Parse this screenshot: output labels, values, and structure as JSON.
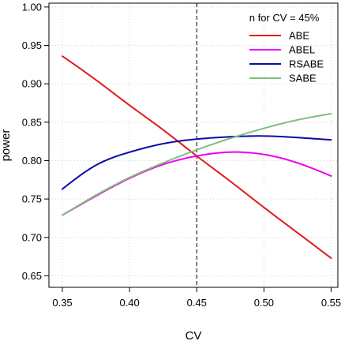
{
  "chart_data": {
    "type": "line",
    "xlabel": "CV",
    "ylabel": "power",
    "xlim": [
      0.34,
      0.555
    ],
    "ylim": [
      0.635,
      1.005
    ],
    "xticks": [
      0.35,
      0.4,
      0.45,
      0.5,
      0.55
    ],
    "xtick_labels": [
      "0.35",
      "0.40",
      "0.45",
      "0.50",
      "0.55"
    ],
    "yticks": [
      0.65,
      0.7,
      0.75,
      0.8,
      0.85,
      0.9,
      0.95,
      1.0
    ],
    "ytick_labels": [
      "0.65",
      "0.70",
      "0.75",
      "0.80",
      "0.85",
      "0.90",
      "0.95",
      "1.00"
    ],
    "grid": true,
    "reference_line": {
      "x": 0.45,
      "style": "dashed",
      "color": "#000000"
    },
    "legend": {
      "title": "n for CV = 45%",
      "position": "top-right"
    },
    "series": [
      {
        "name": "ABE",
        "color": "#e31a1c",
        "x": [
          0.35,
          0.375,
          0.4,
          0.425,
          0.45,
          0.475,
          0.5,
          0.525,
          0.55
        ],
        "y": [
          0.936,
          0.905,
          0.872,
          0.84,
          0.806,
          0.773,
          0.739,
          0.706,
          0.673
        ]
      },
      {
        "name": "ABEL",
        "color": "#ee00ee",
        "x": [
          0.35,
          0.375,
          0.4,
          0.425,
          0.45,
          0.475,
          0.5,
          0.525,
          0.55
        ],
        "y": [
          0.729,
          0.754,
          0.777,
          0.795,
          0.806,
          0.811,
          0.808,
          0.797,
          0.78
        ]
      },
      {
        "name": "RSABE",
        "color": "#0a0aaa",
        "x": [
          0.35,
          0.375,
          0.4,
          0.425,
          0.45,
          0.475,
          0.5,
          0.525,
          0.55
        ],
        "y": [
          0.763,
          0.794,
          0.811,
          0.822,
          0.828,
          0.831,
          0.832,
          0.83,
          0.827
        ]
      },
      {
        "name": "SABE",
        "color": "#7fbf7f",
        "x": [
          0.35,
          0.375,
          0.4,
          0.425,
          0.45,
          0.475,
          0.5,
          0.525,
          0.55
        ],
        "y": [
          0.729,
          0.755,
          0.778,
          0.797,
          0.814,
          0.829,
          0.842,
          0.853,
          0.861
        ]
      }
    ]
  }
}
